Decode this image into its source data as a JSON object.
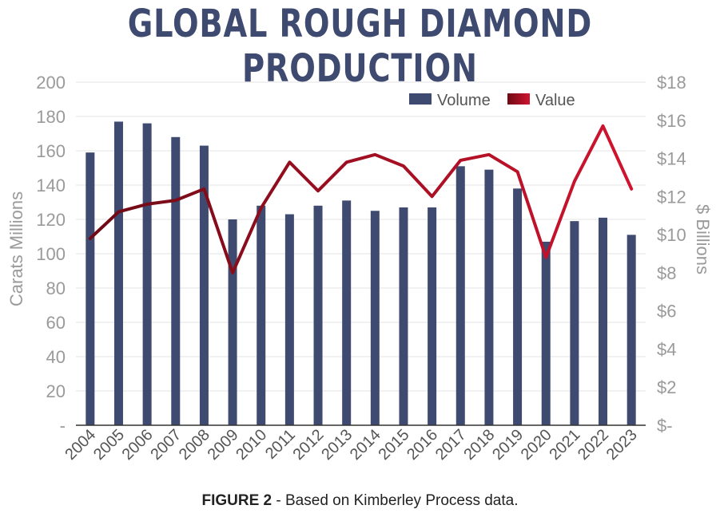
{
  "chart_data": {
    "type": "bar",
    "title": "GLOBAL ROUGH DIAMOND PRODUCTION",
    "categories": [
      "2004",
      "2005",
      "2006",
      "2007",
      "2008",
      "2009",
      "2010",
      "2011",
      "2012",
      "2013",
      "2014",
      "2015",
      "2016",
      "2017",
      "2018",
      "2019",
      "2020",
      "2021",
      "2022",
      "2023"
    ],
    "series": [
      {
        "name": "Volume",
        "type": "bar",
        "axis": "left",
        "color": "#3e4a6f",
        "values": [
          159,
          177,
          176,
          168,
          163,
          120,
          128,
          123,
          128,
          131,
          125,
          127,
          127,
          151,
          149,
          138,
          107,
          119,
          121,
          111
        ]
      },
      {
        "name": "Value",
        "type": "line",
        "axis": "right",
        "color": "#c8102e",
        "color_dark": "#7a0a16",
        "values": [
          9.8,
          11.2,
          11.6,
          11.8,
          12.4,
          8.0,
          11.4,
          13.8,
          12.3,
          13.8,
          14.2,
          13.6,
          12.0,
          13.9,
          14.2,
          13.3,
          8.8,
          12.8,
          15.7,
          12.4
        ]
      }
    ],
    "ylabel": "Carats Millions",
    "y2label": "$ Billions",
    "ylim": [
      0,
      200
    ],
    "y2lim": [
      0,
      18
    ],
    "yticks": [
      "-",
      "20",
      "40",
      "60",
      "80",
      "100",
      "120",
      "140",
      "160",
      "180",
      "200"
    ],
    "y2ticks": [
      "$-",
      "$2",
      "$4",
      "$6",
      "$8",
      "$10",
      "$12",
      "$14",
      "$16",
      "$18"
    ],
    "grid": true,
    "legend": "top-right"
  },
  "caption": {
    "label": "FIGURE 2",
    "text": " - Based on Kimberley Process data."
  }
}
